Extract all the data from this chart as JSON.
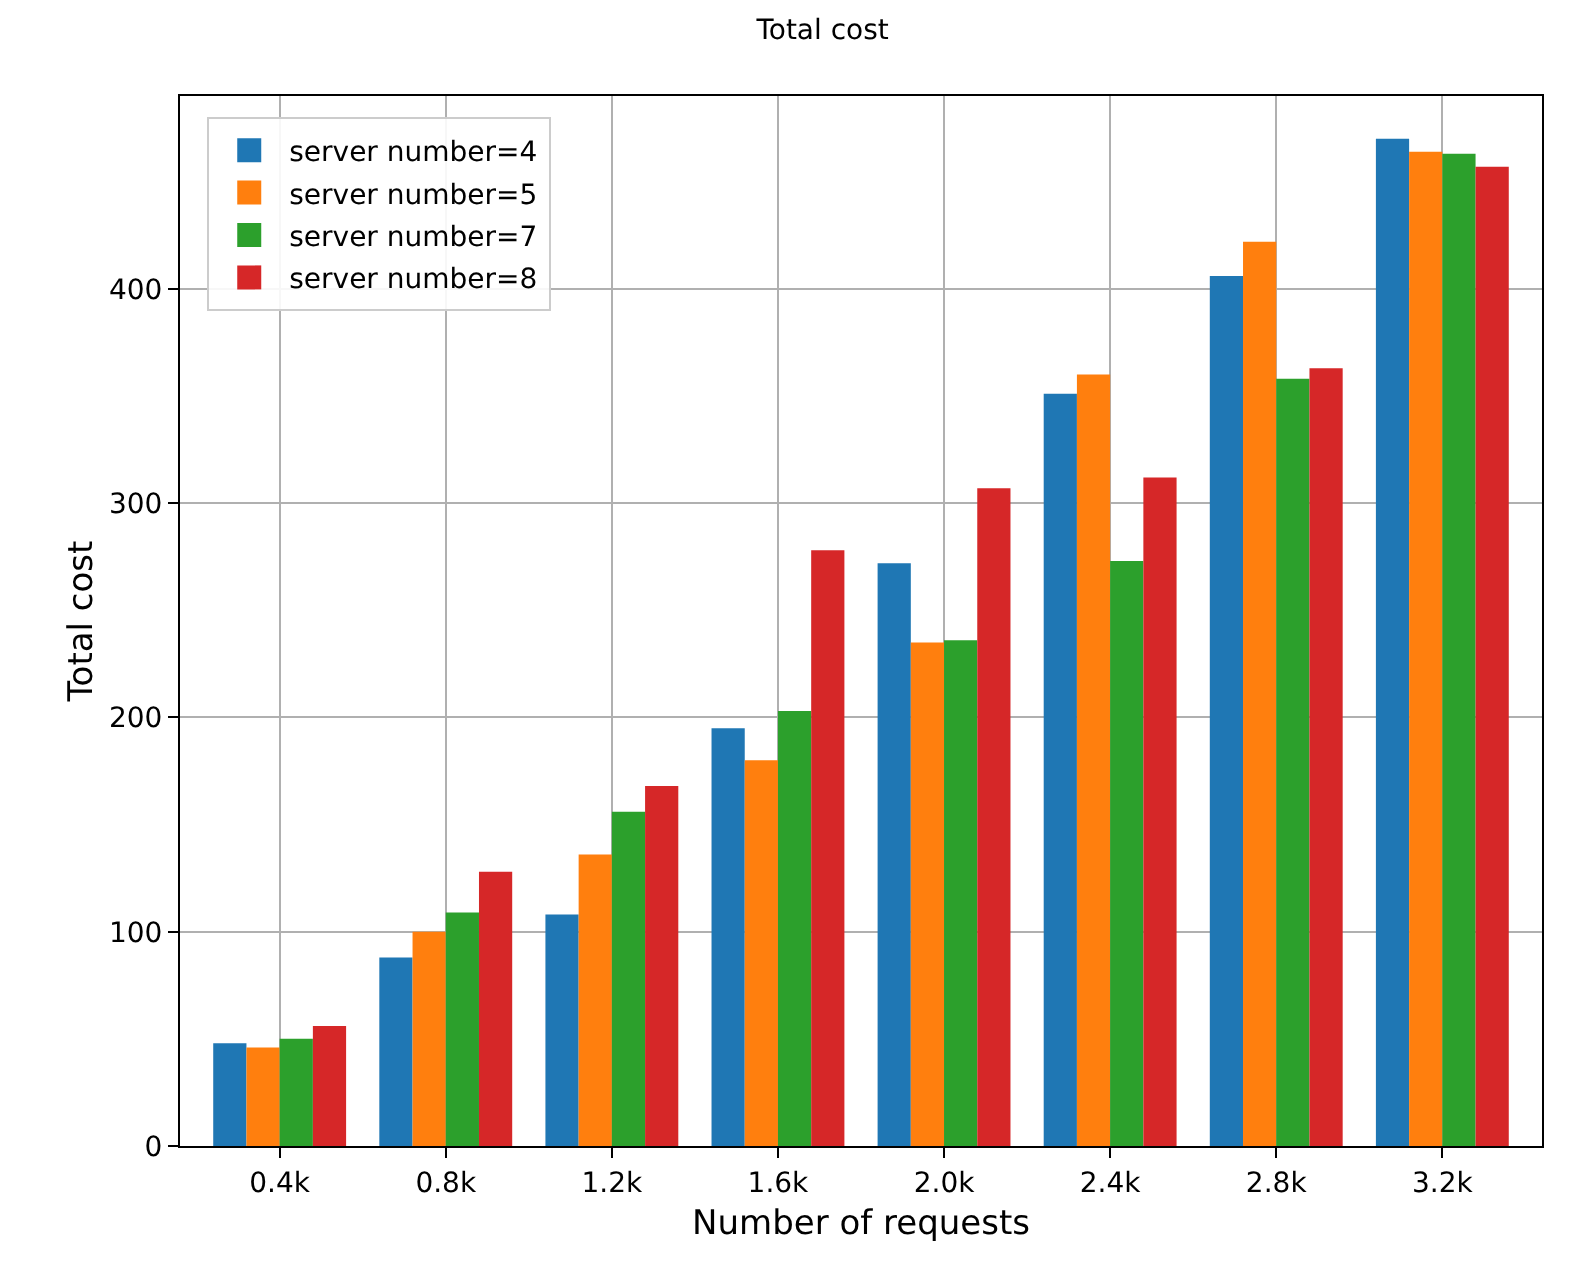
{
  "chart_data": {
    "type": "bar",
    "title": "Total cost",
    "xlabel": "Number of requests",
    "ylabel": "Total cost",
    "categories": [
      "0.4k",
      "0.8k",
      "1.2k",
      "1.6k",
      "2.0k",
      "2.4k",
      "2.8k",
      "3.2k"
    ],
    "series": [
      {
        "name": "server number=4",
        "color": "#1f77b4",
        "values": [
          48,
          88,
          108,
          195,
          272,
          351,
          406,
          470
        ]
      },
      {
        "name": "server number=5",
        "color": "#ff7f0e",
        "values": [
          46,
          100,
          136,
          180,
          235,
          360,
          422,
          464
        ]
      },
      {
        "name": "server number=7",
        "color": "#2ca02c",
        "values": [
          50,
          109,
          156,
          203,
          236,
          273,
          358,
          463
        ]
      },
      {
        "name": "server number=8",
        "color": "#d62728",
        "values": [
          56,
          128,
          168,
          278,
          307,
          312,
          363,
          457
        ]
      }
    ],
    "ylim": [
      0,
      490
    ],
    "yticks": [
      0,
      100,
      200,
      300,
      400
    ],
    "grid": true,
    "legend": "top left"
  }
}
